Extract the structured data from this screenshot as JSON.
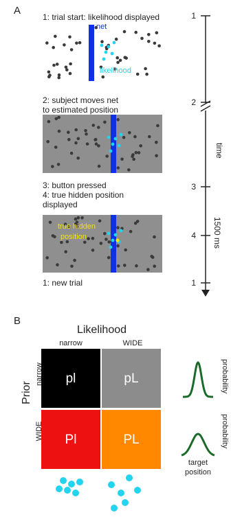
{
  "panel_a": {
    "label": "A",
    "step1": "1: trial start: likelihood displayed",
    "step2_line1": "2: subject moves net",
    "step2_line2": "to estimated position",
    "step3": "3: button pressed",
    "step4_line1": "4: true hidden position",
    "step4_line2": "displayed",
    "step_new": "1: new trial",
    "net_label": "net",
    "likelihood_label": "likelihood",
    "hidden_label_line1": "true hidden",
    "hidden_label_line2": "position",
    "timeline": {
      "tick_1_top": "1",
      "tick_2": "2",
      "tick_3": "3",
      "tick_4": "4",
      "tick_1_bottom": "1",
      "axis_label": "time",
      "duration_label": "1500 ms"
    }
  },
  "panel_b": {
    "label": "B",
    "likelihood_title": "Likelihood",
    "col_narrow": "narrow",
    "col_wide": "WIDE",
    "prior_title": "Prior",
    "row_narrow": "narrow",
    "row_wide": "WIDE",
    "cells": [
      {
        "text": "pl",
        "color": "#000000"
      },
      {
        "text": "pL",
        "color": "#8c8c8c"
      },
      {
        "text": "Pl",
        "color": "#ee1111"
      },
      {
        "text": "PL",
        "color": "#ff8800"
      }
    ],
    "prob_label_top": "probability",
    "prob_label_bottom": "probability",
    "target_line1": "target",
    "target_line2": "position"
  },
  "colors": {
    "net": "#1030e8",
    "likelihood_dots": "#22d4ee",
    "hidden_dot": "#f2e600",
    "hidden_text": "#f2e600",
    "background_panel": "#8f8f8f",
    "curve": "#1a6b2a",
    "dark_dots": "#3a3a3a"
  }
}
